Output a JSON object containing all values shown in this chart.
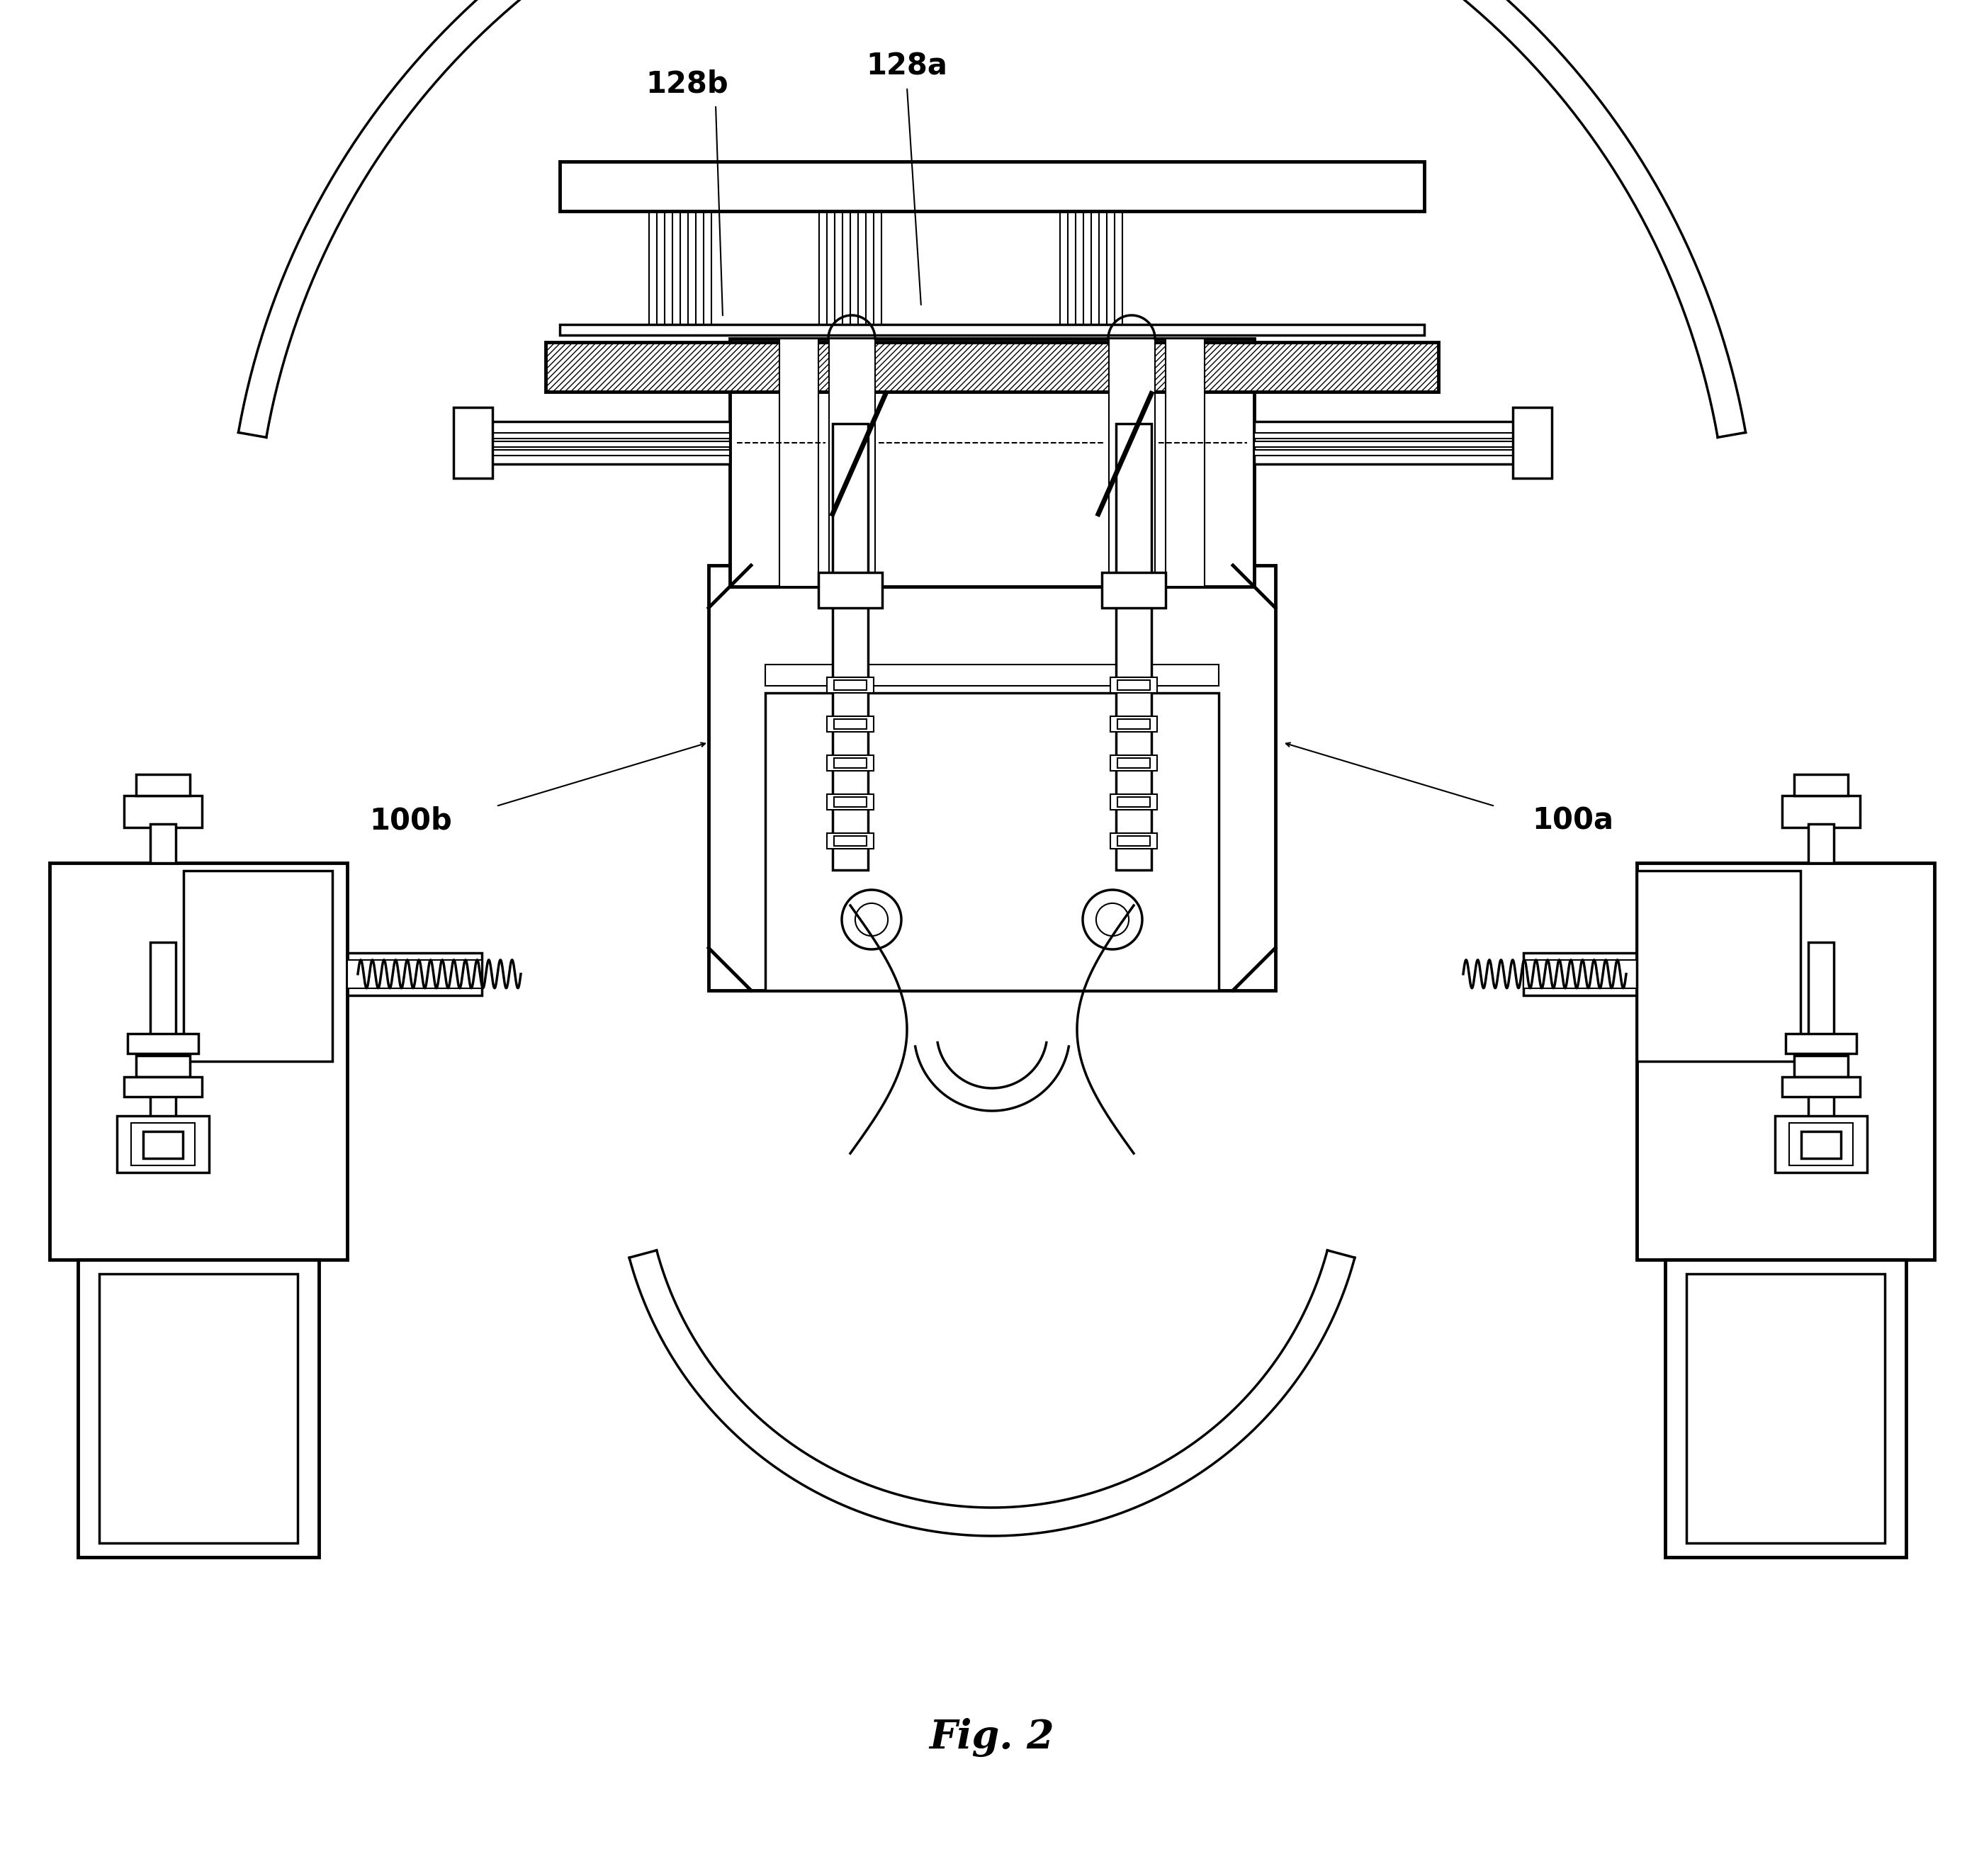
{
  "title": "Fig. 2",
  "label_128b": "128b",
  "label_128a": "128a",
  "label_100b": "100b",
  "label_100a": "100a",
  "bg_color": "#ffffff",
  "line_color": "#000000",
  "title_fontsize": 40,
  "label_fontsize": 30
}
